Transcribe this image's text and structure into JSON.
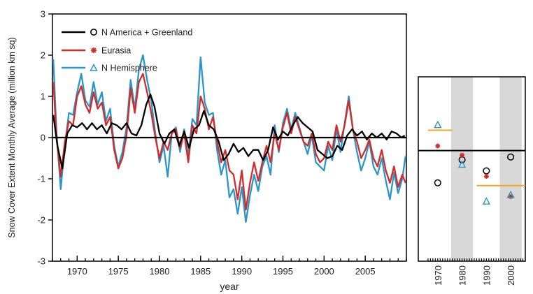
{
  "chart_data": [
    {
      "type": "line",
      "xlabel": "year",
      "ylabel": "Snow Cover Extent Monthly Average (million km sq)",
      "xlim": [
        1967,
        2010
      ],
      "ylim": [
        -3,
        3
      ],
      "x_ticks": [
        1970,
        1975,
        1980,
        1985,
        1990,
        1995,
        2000,
        2005
      ],
      "y_ticks": [
        -3,
        -2,
        -1,
        0,
        1,
        2,
        3
      ],
      "grid": false,
      "legend_position": "top-left",
      "legend": [
        {
          "label": "N America + Greenland",
          "marker": "circle",
          "color": "#000000"
        },
        {
          "label": "Eurasia",
          "marker": "star",
          "color": "#d42a2a"
        },
        {
          "label": "N Hemisphere",
          "marker": "triangle",
          "color": "#2a96c8"
        }
      ],
      "series": [
        {
          "name": "N America + Greenland",
          "color": "#000000",
          "x": [
            1967.1,
            1967.6,
            1968.2,
            1968.8,
            1969.4,
            1970.0,
            1970.6,
            1971.2,
            1971.8,
            1972.4,
            1973.0,
            1973.6,
            1974.2,
            1974.8,
            1975.4,
            1976.0,
            1976.6,
            1977.2,
            1977.8,
            1978.4,
            1978.9,
            1979.4,
            1980.0,
            1980.6,
            1981.2,
            1981.8,
            1982.4,
            1983.0,
            1983.6,
            1984.2,
            1984.8,
            1985.4,
            1986.0,
            1986.6,
            1987.2,
            1987.8,
            1988.4,
            1989.0,
            1989.6,
            1990.2,
            1990.8,
            1991.4,
            1992.0,
            1992.6,
            1993.2,
            1993.8,
            1994.4,
            1995.0,
            1995.6,
            1996.2,
            1996.8,
            1997.4,
            1998.0,
            1998.6,
            1999.2,
            1999.8,
            2000.4,
            2001.0,
            2001.6,
            2002.2,
            2002.8,
            2003.4,
            2004.0,
            2004.6,
            2005.2,
            2005.8,
            2006.4,
            2007.0,
            2007.6,
            2008.2,
            2008.8,
            2009.4,
            2009.8
          ],
          "values": [
            0.55,
            -0.2,
            -0.75,
            0.1,
            0.3,
            0.25,
            0.35,
            0.2,
            0.35,
            0.2,
            0.3,
            0.1,
            0.35,
            0.3,
            0.2,
            0.35,
            0.1,
            0.05,
            0.3,
            0.8,
            1.05,
            0.75,
            0.1,
            -0.15,
            0.1,
            0.2,
            -0.2,
            0.15,
            -0.25,
            0.2,
            0.3,
            0.65,
            0.3,
            0.2,
            -0.1,
            -0.55,
            -0.4,
            -0.15,
            -0.35,
            -0.25,
            -0.45,
            -0.3,
            -0.3,
            -0.55,
            -0.3,
            0.25,
            -0.05,
            0.15,
            0.05,
            0.3,
            0.5,
            0.35,
            0.25,
            0.15,
            -0.3,
            -0.4,
            -0.5,
            -0.45,
            -0.2,
            -0.3,
            0.05,
            0.2,
            0.05,
            0.15,
            -0.05,
            0.1,
            0.0,
            0.1,
            -0.05,
            0.15,
            0.1,
            0.0,
            0.05
          ]
        },
        {
          "name": "Eurasia",
          "color": "#d42a2a",
          "x": [
            1967.1,
            1967.5,
            1968.0,
            1968.5,
            1969.0,
            1969.5,
            1970.0,
            1970.5,
            1971.0,
            1971.5,
            1972.0,
            1972.5,
            1973.0,
            1973.5,
            1974.0,
            1974.5,
            1975.0,
            1975.5,
            1976.0,
            1976.5,
            1977.0,
            1977.5,
            1978.0,
            1978.5,
            1979.0,
            1979.5,
            1980.0,
            1980.5,
            1981.0,
            1981.5,
            1982.0,
            1982.5,
            1983.0,
            1983.5,
            1984.0,
            1984.5,
            1985.0,
            1985.5,
            1986.0,
            1986.5,
            1987.0,
            1987.5,
            1988.0,
            1988.5,
            1989.0,
            1989.5,
            1990.0,
            1990.5,
            1991.0,
            1991.5,
            1992.0,
            1992.5,
            1993.0,
            1993.5,
            1994.0,
            1994.5,
            1995.0,
            1995.5,
            1996.0,
            1996.5,
            1997.0,
            1997.5,
            1998.0,
            1998.5,
            1999.0,
            1999.5,
            2000.0,
            2000.5,
            2001.0,
            2001.5,
            2002.0,
            2002.5,
            2003.0,
            2003.5,
            2004.0,
            2004.5,
            2005.0,
            2005.5,
            2006.0,
            2006.5,
            2007.0,
            2007.5,
            2008.0,
            2008.5,
            2009.0,
            2009.5,
            2009.9
          ],
          "values": [
            1.35,
            0.0,
            -0.95,
            -0.1,
            0.4,
            0.3,
            1.0,
            1.25,
            0.8,
            0.6,
            1.1,
            0.7,
            0.85,
            0.3,
            0.5,
            -0.3,
            -0.75,
            -0.5,
            0.05,
            1.2,
            0.6,
            1.35,
            1.55,
            1.1,
            0.6,
            0.0,
            -0.5,
            -0.1,
            -0.3,
            0.1,
            0.2,
            -0.25,
            0.1,
            -0.6,
            0.3,
            0.1,
            1.0,
            0.7,
            0.2,
            0.5,
            -0.1,
            -0.6,
            -0.3,
            -0.8,
            -0.9,
            -1.5,
            -0.8,
            -1.75,
            -1.1,
            -0.6,
            -1.05,
            -0.6,
            -0.2,
            -0.6,
            0.1,
            -0.3,
            0.25,
            0.6,
            0.1,
            0.5,
            0.2,
            -0.1,
            -0.2,
            0.1,
            -0.4,
            -0.6,
            -0.5,
            -0.1,
            -0.3,
            0.3,
            -0.1,
            0.3,
            0.9,
            0.2,
            -0.1,
            -0.5,
            -0.3,
            -0.05,
            -0.5,
            -0.7,
            -0.3,
            -0.8,
            -1.1,
            -0.7,
            -1.2,
            -0.9,
            -1.1
          ]
        },
        {
          "name": "N Hemisphere",
          "color": "#2a96c8",
          "x": [
            1967.1,
            1967.5,
            1968.0,
            1968.5,
            1969.0,
            1969.5,
            1970.0,
            1970.5,
            1971.0,
            1971.5,
            1972.0,
            1972.5,
            1973.0,
            1973.5,
            1974.0,
            1974.5,
            1975.0,
            1975.5,
            1976.0,
            1976.5,
            1977.0,
            1977.5,
            1978.0,
            1978.5,
            1979.0,
            1979.5,
            1980.0,
            1980.5,
            1981.0,
            1981.5,
            1982.0,
            1982.5,
            1983.0,
            1983.5,
            1984.0,
            1984.5,
            1985.0,
            1985.5,
            1986.0,
            1986.5,
            1987.0,
            1987.5,
            1988.0,
            1988.5,
            1989.0,
            1989.5,
            1990.0,
            1990.5,
            1991.0,
            1991.5,
            1992.0,
            1992.5,
            1993.0,
            1993.5,
            1994.0,
            1994.5,
            1995.0,
            1995.5,
            1996.0,
            1996.5,
            1997.0,
            1997.5,
            1998.0,
            1998.5,
            1999.0,
            1999.5,
            2000.0,
            2000.5,
            2001.0,
            2001.5,
            2002.0,
            2002.5,
            2003.0,
            2003.5,
            2004.0,
            2004.5,
            2005.0,
            2005.5,
            2006.0,
            2006.5,
            2007.0,
            2007.5,
            2008.0,
            2008.5,
            2009.0,
            2009.5,
            2009.9
          ],
          "values": [
            1.9,
            0.1,
            -1.25,
            -0.2,
            0.6,
            0.55,
            1.1,
            1.55,
            0.9,
            0.75,
            1.35,
            0.8,
            1.1,
            0.4,
            0.7,
            -0.2,
            -0.7,
            -0.35,
            0.25,
            1.4,
            0.7,
            1.65,
            2.0,
            1.4,
            0.9,
            0.1,
            -0.6,
            -0.2,
            -0.95,
            0.1,
            0.25,
            -0.35,
            0.2,
            -0.45,
            0.45,
            0.3,
            1.95,
            0.85,
            0.55,
            0.6,
            -0.3,
            -0.9,
            -0.55,
            -1.45,
            -1.25,
            -1.85,
            -1.2,
            -2.05,
            -1.4,
            -0.9,
            -1.3,
            -0.7,
            -0.45,
            -0.9,
            0.3,
            -0.35,
            0.35,
            0.7,
            0.2,
            0.6,
            0.25,
            -0.1,
            -0.4,
            0.05,
            -0.6,
            -0.7,
            -0.8,
            -0.2,
            -0.55,
            0.2,
            -0.35,
            0.35,
            1.0,
            0.2,
            -0.35,
            -0.8,
            -0.5,
            -0.1,
            -0.7,
            -0.9,
            -0.5,
            -1.05,
            -1.5,
            -0.85,
            -1.35,
            -1.0,
            -0.45
          ]
        }
      ]
    },
    {
      "type": "scatter",
      "x_ticks": [
        "1970",
        "1980",
        "1990",
        "2000"
      ],
      "decades": [
        1970,
        1980,
        1990,
        2000
      ],
      "shaded_decades": [
        1980,
        2000
      ],
      "zero_level": 0,
      "ylim": [
        -1.2,
        0.8
      ],
      "points": [
        {
          "series": "N America + Greenland",
          "marker": "circle",
          "values": [
            -0.35,
            -0.1,
            -0.22,
            -0.07
          ]
        },
        {
          "series": "Eurasia",
          "marker": "star",
          "values": [
            0.05,
            -0.05,
            -0.28,
            -0.5
          ]
        },
        {
          "series": "N Hemisphere",
          "marker": "triangle",
          "values": [
            0.28,
            -0.15,
            -0.55,
            -0.48
          ]
        }
      ],
      "mean_segments": [
        {
          "from": 1966,
          "to": 1976,
          "value": 0.22,
          "color": "#f5a623"
        },
        {
          "from": 1986,
          "to": 2006,
          "value": -0.38,
          "color": "#f5a623"
        }
      ]
    }
  ]
}
